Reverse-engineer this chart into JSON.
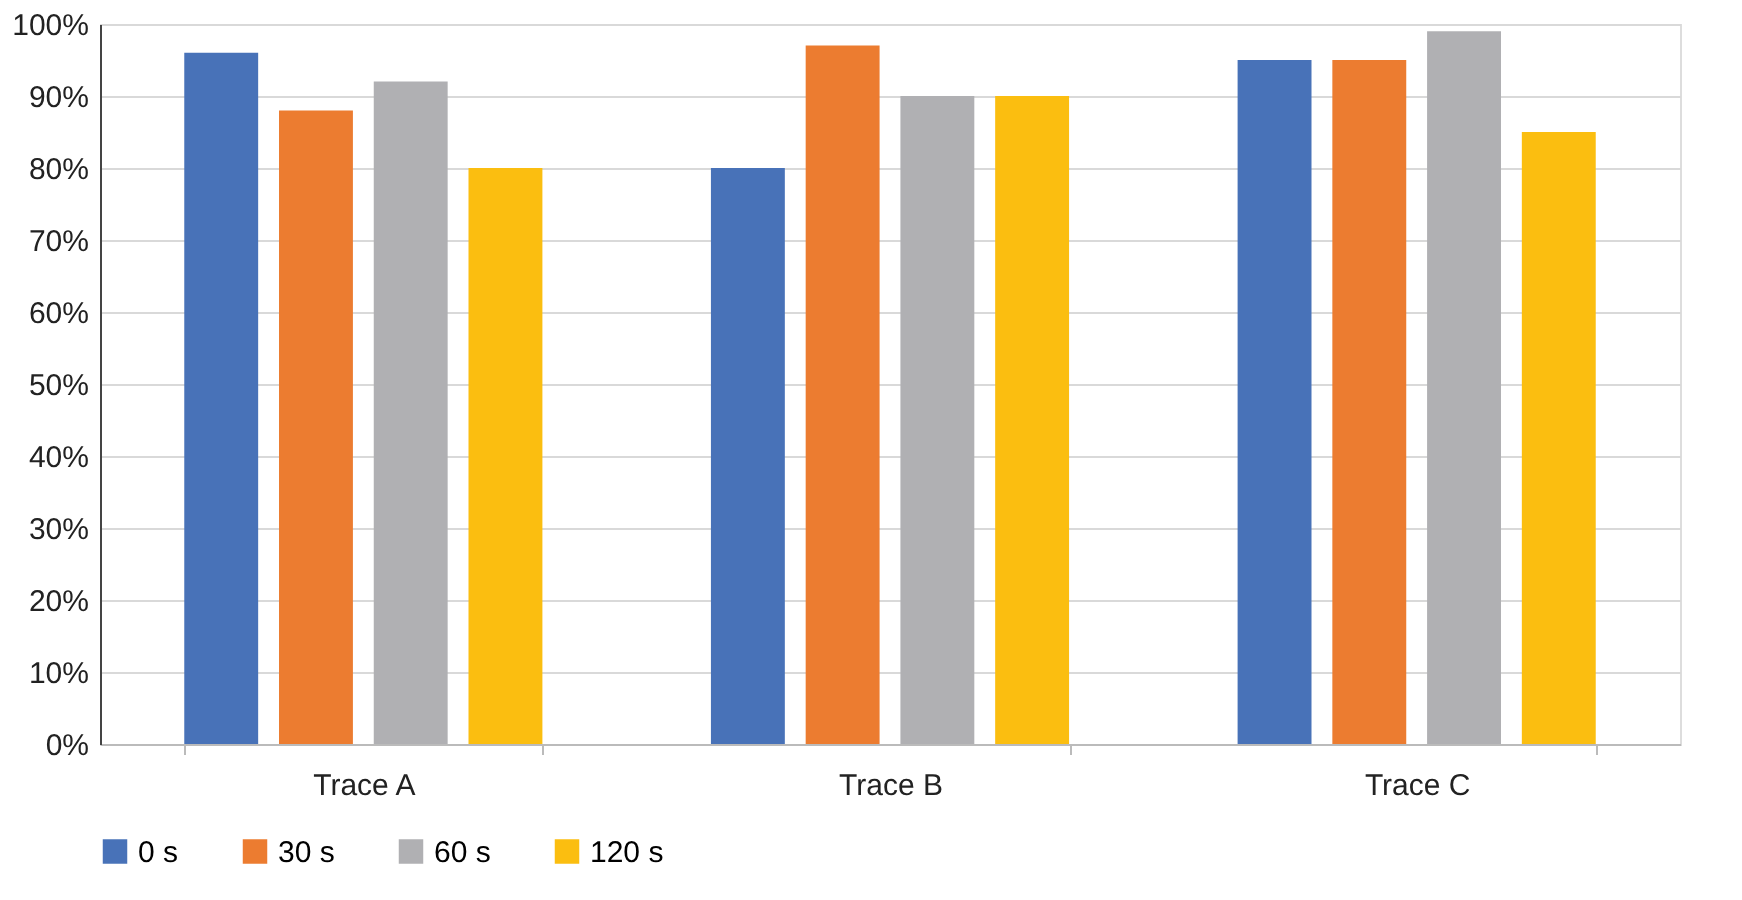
{
  "chart_data": {
    "type": "bar",
    "categories": [
      "Trace A",
      "Trace B",
      "Trace C"
    ],
    "series": [
      {
        "name": "0 s",
        "color": "#4872b8",
        "values": [
          96,
          80,
          95
        ]
      },
      {
        "name": "30 s",
        "color": "#ec7c30",
        "values": [
          88,
          97,
          95
        ]
      },
      {
        "name": "60 s",
        "color": "#b0b0b3",
        "values": [
          92,
          90,
          99
        ]
      },
      {
        "name": "120 s",
        "color": "#fbbe10",
        "values": [
          80,
          90,
          85
        ]
      }
    ],
    "ylim": [
      0,
      100
    ],
    "yticks": [
      {
        "value": 0,
        "label": "0%"
      },
      {
        "value": 10,
        "label": "10%"
      },
      {
        "value": 20,
        "label": "20%"
      },
      {
        "value": 30,
        "label": "30%"
      },
      {
        "value": 40,
        "label": "40%"
      },
      {
        "value": 50,
        "label": "50%"
      },
      {
        "value": 60,
        "label": "60%"
      },
      {
        "value": 70,
        "label": "70%"
      },
      {
        "value": 80,
        "label": "80%"
      },
      {
        "value": 90,
        "label": "90%"
      },
      {
        "value": 100,
        "label": "100%"
      }
    ],
    "grid": "y",
    "legend": "bottom"
  }
}
